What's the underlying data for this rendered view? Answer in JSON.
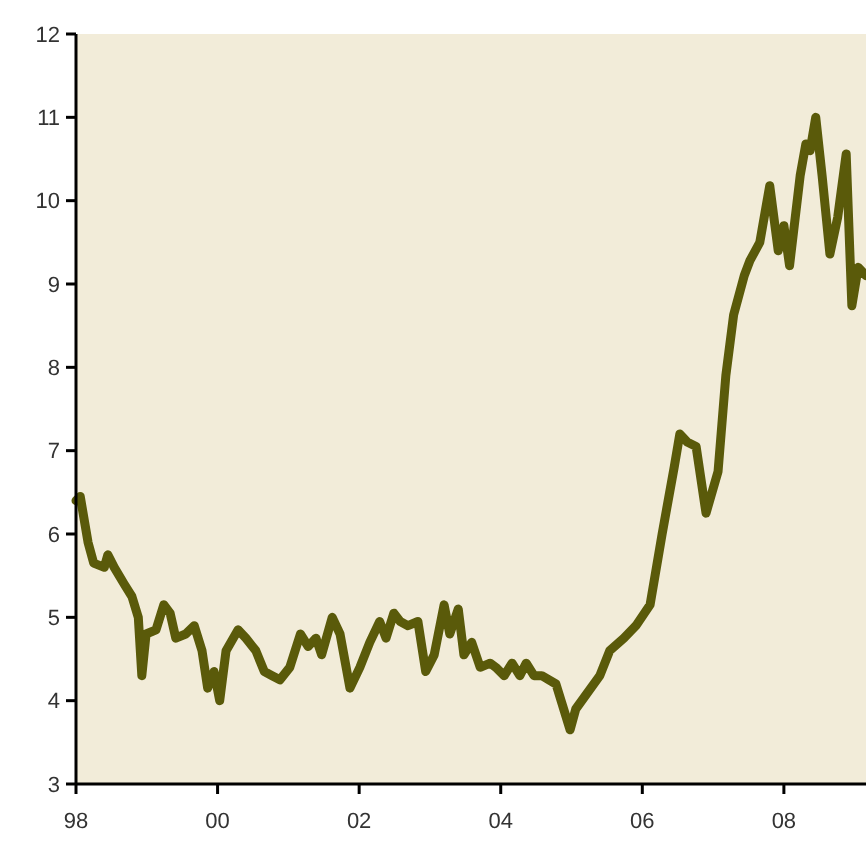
{
  "chart_data": {
    "type": "line",
    "xlim": [
      1998,
      2009.16
    ],
    "ylim": [
      3,
      12
    ],
    "xticks": [
      {
        "value": 1998,
        "label": "98"
      },
      {
        "value": 2000,
        "label": "00"
      },
      {
        "value": 2002,
        "label": "02"
      },
      {
        "value": 2004,
        "label": "04"
      },
      {
        "value": 2006,
        "label": "06"
      },
      {
        "value": 2008,
        "label": "08"
      }
    ],
    "yticks": [
      3,
      4,
      5,
      6,
      7,
      8,
      9,
      10,
      11,
      12
    ],
    "grid": false,
    "marker": "none",
    "line_style": "solid",
    "x": [
      1998.0,
      1998.06,
      1998.17,
      1998.25,
      1998.4,
      1998.45,
      1998.54,
      1998.68,
      1998.79,
      1998.88,
      1998.93,
      1998.99,
      1999.13,
      1999.24,
      1999.33,
      1999.41,
      1999.55,
      1999.67,
      1999.78,
      1999.86,
      1999.95,
      2000.03,
      2000.12,
      2000.29,
      2000.4,
      2000.54,
      2000.66,
      2000.77,
      2000.88,
      2001.02,
      2001.17,
      2001.28,
      2001.39,
      2001.47,
      2001.62,
      2001.73,
      2001.87,
      2002.01,
      2002.15,
      2002.29,
      2002.38,
      2002.49,
      2002.58,
      2002.69,
      2002.83,
      2002.94,
      2003.06,
      2003.2,
      2003.28,
      2003.4,
      2003.48,
      2003.59,
      2003.71,
      2003.85,
      2003.93,
      2004.05,
      2004.16,
      2004.27,
      2004.36,
      2004.47,
      2004.58,
      2004.78,
      2004.98,
      2005.06,
      2005.4,
      2005.54,
      2005.74,
      2005.91,
      2006.11,
      2006.28,
      2006.45,
      2006.53,
      2006.64,
      2006.76,
      2006.9,
      2007.07,
      2007.18,
      2007.29,
      2007.44,
      2007.52,
      2007.66,
      2007.8,
      2007.92,
      2008.0,
      2008.08,
      2008.23,
      2008.31,
      2008.37,
      2008.45,
      2008.54,
      2008.65,
      2008.76,
      2008.88,
      2008.96,
      2009.05,
      2009.16
    ],
    "series": [
      {
        "color": "#5a5a0a",
        "values": [
          6.4,
          6.45,
          5.9,
          5.65,
          5.6,
          5.75,
          5.6,
          5.4,
          5.25,
          5.0,
          4.3,
          4.8,
          4.85,
          5.15,
          5.05,
          4.75,
          4.8,
          4.9,
          4.6,
          4.15,
          4.35,
          4.0,
          4.6,
          4.85,
          4.75,
          4.6,
          4.35,
          4.3,
          4.25,
          4.4,
          4.8,
          4.65,
          4.75,
          4.55,
          5.0,
          4.8,
          4.15,
          4.4,
          4.7,
          4.95,
          4.75,
          5.05,
          4.95,
          4.9,
          4.95,
          4.35,
          4.55,
          5.15,
          4.8,
          5.1,
          4.55,
          4.7,
          4.4,
          4.45,
          4.4,
          4.3,
          4.45,
          4.3,
          4.45,
          4.3,
          4.3,
          4.2,
          3.65,
          3.9,
          4.3,
          4.6,
          4.75,
          4.9,
          5.15,
          6.0,
          6.8,
          7.2,
          7.1,
          7.05,
          6.25,
          6.75,
          7.9,
          8.63,
          9.1,
          9.28,
          9.5,
          10.18,
          9.4,
          9.7,
          9.22,
          10.3,
          10.68,
          10.6,
          11.0,
          10.3,
          9.36,
          9.8,
          10.56,
          8.74,
          9.2,
          9.1
        ]
      }
    ]
  }
}
